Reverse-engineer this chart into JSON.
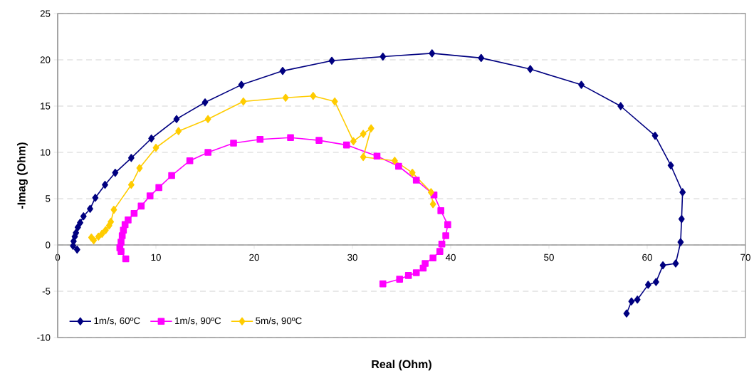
{
  "chart_data": {
    "type": "line",
    "xlabel": "Real (Ohm)",
    "ylabel": "-Imag (Ohm)",
    "xlim": [
      0,
      70
    ],
    "ylim": [
      -10,
      25
    ],
    "xticks": [
      0,
      10,
      20,
      30,
      40,
      50,
      60,
      70
    ],
    "yticks": [
      -10,
      -5,
      0,
      5,
      10,
      15,
      20,
      25
    ],
    "grid": "y",
    "legend": "bottom left",
    "line_style": "solid",
    "series": [
      {
        "name": "1m/s, 60ºC",
        "color": "#000080",
        "marker": "diamond",
        "x": [
          1.98,
          1.57,
          1.62,
          1.74,
          1.86,
          2.05,
          2.29,
          2.63,
          3.3,
          3.83,
          4.82,
          5.86,
          7.49,
          9.54,
          12.1,
          15.0,
          18.7,
          22.9,
          27.9,
          33.1,
          38.1,
          43.1,
          48.1,
          53.3,
          57.3,
          60.8,
          62.4,
          63.6,
          63.5,
          63.4,
          62.9,
          61.6,
          60.9,
          60.1,
          59.0,
          58.4,
          57.9
        ],
        "values": [
          -0.5,
          -0.1,
          0.4,
          0.9,
          1.3,
          1.9,
          2.4,
          3.1,
          3.9,
          5.1,
          6.5,
          7.8,
          9.4,
          11.5,
          13.6,
          15.4,
          17.3,
          18.8,
          19.9,
          20.35,
          20.7,
          20.2,
          19.0,
          17.3,
          15.0,
          11.8,
          8.6,
          5.7,
          2.8,
          0.3,
          -2.0,
          -2.2,
          -4.0,
          -4.3,
          -5.9,
          -6.1,
          -7.4
        ]
      },
      {
        "name": "1m/s, 90ºC",
        "color": "#ff00ff",
        "marker": "square",
        "x": [
          6.93,
          6.45,
          6.33,
          6.45,
          6.57,
          6.69,
          6.86,
          7.17,
          7.78,
          8.5,
          9.4,
          10.3,
          11.6,
          13.45,
          15.3,
          17.9,
          20.6,
          23.7,
          26.6,
          29.4,
          32.5,
          34.7,
          36.5,
          38.3,
          39.0,
          39.7,
          39.5,
          39.1,
          38.9,
          38.2,
          37.4,
          37.2,
          36.5,
          35.7,
          34.8,
          33.1
        ],
        "values": [
          -1.5,
          -0.7,
          -0.3,
          0.3,
          1.0,
          1.6,
          2.2,
          2.7,
          3.4,
          4.2,
          5.3,
          6.2,
          7.5,
          9.1,
          10.0,
          11.0,
          11.4,
          11.6,
          11.3,
          10.8,
          9.6,
          8.5,
          7.0,
          5.4,
          3.7,
          2.2,
          1.0,
          0.1,
          -0.7,
          -1.4,
          -2.0,
          -2.5,
          -3.0,
          -3.3,
          -3.7,
          -4.2
        ]
      },
      {
        "name": "5m/s, 90ºC",
        "color": "#ffcc00",
        "marker": "diamond",
        "x": [
          3.43,
          3.67,
          4.15,
          4.51,
          4.88,
          5.24,
          5.41,
          5.72,
          7.49,
          8.33,
          10.0,
          12.3,
          15.3,
          18.9,
          23.2,
          26.0,
          28.2,
          30.1,
          31.1,
          31.9,
          31.1,
          34.3,
          36.1,
          38.0,
          38.2
        ],
        "values": [
          0.8,
          0.5,
          0.9,
          1.2,
          1.6,
          2.1,
          2.5,
          3.8,
          6.5,
          8.3,
          10.5,
          12.3,
          13.6,
          15.5,
          15.9,
          16.1,
          15.5,
          11.2,
          12.0,
          12.6,
          9.5,
          9.1,
          7.8,
          5.7,
          4.4
        ]
      }
    ]
  }
}
